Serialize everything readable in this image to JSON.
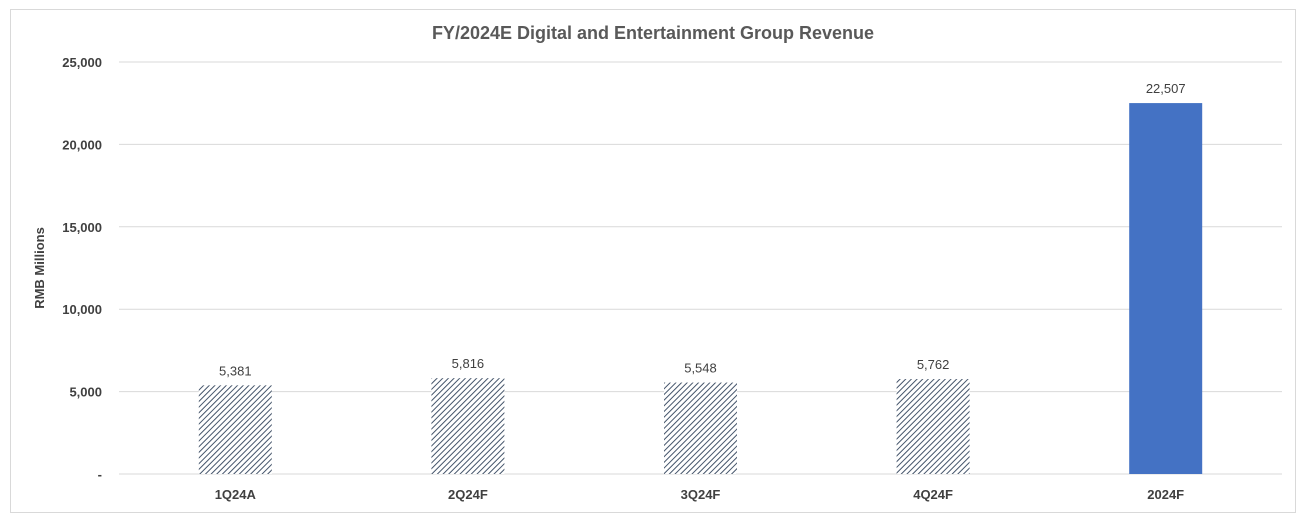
{
  "chart_data": {
    "type": "bar",
    "title": "FY/2024E Digital and Entertainment Group Revenue",
    "ylabel": "RMB Millions",
    "xlabel": "",
    "categories": [
      "1Q24A",
      "2Q24F",
      "3Q24F",
      "4Q24F",
      "2024F"
    ],
    "values": [
      5381,
      5816,
      5548,
      5762,
      22507
    ],
    "data_labels": [
      "5,381",
      "5,816",
      "5,548",
      "5,762",
      "22,507"
    ],
    "bar_styles": [
      "hatched",
      "hatched",
      "hatched",
      "hatched",
      "solid"
    ],
    "ylim": [
      0,
      25000
    ],
    "yticks": [
      0,
      5000,
      10000,
      15000,
      20000,
      25000
    ],
    "ytick_labels": [
      "-",
      "5,000",
      "10,000",
      "15,000",
      "20,000",
      "25,000"
    ],
    "grid": true,
    "legend": "none",
    "colors": {
      "solid": "#4472c4",
      "hatch": "#44546a",
      "grid": "#d9d9d9",
      "text": "#404040",
      "title": "#595959"
    }
  }
}
